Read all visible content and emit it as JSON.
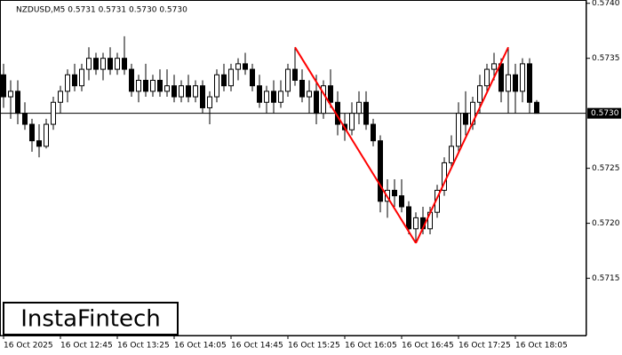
{
  "chart_data": {
    "type": "candlestick",
    "title": "NZDUSD,M5  0.5731 0.5731 0.5730 0.5730",
    "watermark": "InstaFintech",
    "categories": [
      "16 Oct 2025",
      null,
      null,
      null,
      null,
      null,
      null,
      null,
      "16 Oct 12:45",
      null,
      null,
      null,
      null,
      null,
      null,
      null,
      "16 Oct 13:25",
      null,
      null,
      null,
      null,
      null,
      null,
      null,
      "16 Oct 14:05",
      null,
      null,
      null,
      null,
      null,
      null,
      null,
      "16 Oct 14:45",
      null,
      null,
      null,
      null,
      null,
      null,
      null,
      "16 Oct 15:25",
      null,
      null,
      null,
      null,
      null,
      null,
      null,
      "16 Oct 16:05",
      null,
      null,
      null,
      null,
      null,
      null,
      null,
      "16 Oct 16:45",
      null,
      null,
      null,
      null,
      null,
      null,
      null,
      "16 Oct 17:25",
      null,
      null,
      null,
      null,
      null,
      null,
      null,
      "16 Oct 18:05",
      null,
      null,
      null
    ],
    "open": [
      0.57335,
      0.57315,
      0.5732,
      0.573,
      0.5729,
      0.57275,
      0.5727,
      0.5729,
      0.5731,
      0.5732,
      0.57335,
      0.57325,
      0.5734,
      0.5735,
      0.5734,
      0.5735,
      0.5734,
      0.5735,
      0.5734,
      0.5732,
      0.5733,
      0.5732,
      0.5733,
      0.5732,
      0.57325,
      0.57315,
      0.57325,
      0.57315,
      0.57325,
      0.57305,
      0.57315,
      0.57335,
      0.57325,
      0.5734,
      0.57345,
      0.5734,
      0.57325,
      0.5731,
      0.5732,
      0.5731,
      0.5732,
      0.5734,
      0.5733,
      0.57315,
      0.5732,
      0.573,
      0.57325,
      0.5731,
      0.5729,
      0.57285,
      0.573,
      0.5731,
      0.5729,
      0.57275,
      0.5722,
      0.5723,
      0.57225,
      0.57215,
      0.57195,
      0.57205,
      0.57195,
      0.5721,
      0.5723,
      0.57255,
      0.5727,
      0.573,
      0.5729,
      0.5731,
      0.57325,
      0.5734,
      0.57345,
      0.5732,
      0.57335,
      0.5732,
      0.57345,
      0.5731
    ],
    "high": [
      0.57345,
      0.5733,
      0.5733,
      0.5731,
      0.57295,
      0.5729,
      0.57295,
      0.57315,
      0.57325,
      0.5734,
      0.57345,
      0.57345,
      0.5736,
      0.57355,
      0.57355,
      0.5736,
      0.57355,
      0.5737,
      0.57345,
      0.57335,
      0.57345,
      0.57335,
      0.5734,
      0.5734,
      0.57335,
      0.5733,
      0.57335,
      0.5733,
      0.5733,
      0.5732,
      0.5734,
      0.57345,
      0.57345,
      0.5735,
      0.57355,
      0.57345,
      0.57335,
      0.57325,
      0.5733,
      0.5733,
      0.57345,
      0.5736,
      0.5734,
      0.5733,
      0.57335,
      0.5733,
      0.5734,
      0.5732,
      0.573,
      0.5731,
      0.5732,
      0.5732,
      0.57295,
      0.5728,
      0.5724,
      0.5724,
      0.5724,
      0.5722,
      0.5721,
      0.57215,
      0.57215,
      0.57235,
      0.5726,
      0.5728,
      0.5731,
      0.5732,
      0.57315,
      0.57335,
      0.57345,
      0.57355,
      0.5735,
      0.5736,
      0.57345,
      0.5735,
      0.5735,
      0.57312
    ],
    "low": [
      0.57305,
      0.57295,
      0.5729,
      0.57285,
      0.57265,
      0.5726,
      0.57268,
      0.57285,
      0.573,
      0.5731,
      0.5732,
      0.5732,
      0.5733,
      0.57335,
      0.5733,
      0.57335,
      0.57335,
      0.57335,
      0.57315,
      0.5731,
      0.57315,
      0.57315,
      0.57315,
      0.57315,
      0.5731,
      0.5731,
      0.5731,
      0.5731,
      0.573,
      0.5729,
      0.5731,
      0.5732,
      0.5732,
      0.5733,
      0.57335,
      0.5732,
      0.57305,
      0.573,
      0.573,
      0.57305,
      0.57315,
      0.57325,
      0.5731,
      0.573,
      0.5729,
      0.57295,
      0.57305,
      0.5728,
      0.57275,
      0.5728,
      0.5729,
      0.57285,
      0.5727,
      0.5721,
      0.57205,
      0.57215,
      0.5721,
      0.5719,
      0.57182,
      0.5719,
      0.5719,
      0.57205,
      0.57225,
      0.5725,
      0.57265,
      0.5728,
      0.57285,
      0.573,
      0.5732,
      0.5733,
      0.5731,
      0.573,
      0.573,
      0.5731,
      0.573,
      0.573
    ],
    "close": [
      0.57315,
      0.5732,
      0.573,
      0.5729,
      0.57275,
      0.5727,
      0.5729,
      0.5731,
      0.5732,
      0.57335,
      0.57325,
      0.5734,
      0.5735,
      0.5734,
      0.5735,
      0.5734,
      0.5735,
      0.5734,
      0.5732,
      0.5733,
      0.5732,
      0.5733,
      0.5732,
      0.57325,
      0.57315,
      0.57325,
      0.57315,
      0.57325,
      0.57305,
      0.57315,
      0.57335,
      0.57325,
      0.5734,
      0.57345,
      0.5734,
      0.57325,
      0.5731,
      0.5732,
      0.5731,
      0.5732,
      0.5734,
      0.5733,
      0.57315,
      0.5732,
      0.573,
      0.57325,
      0.5731,
      0.5729,
      0.57285,
      0.573,
      0.5731,
      0.5729,
      0.57275,
      0.5722,
      0.5723,
      0.57225,
      0.57215,
      0.57195,
      0.57205,
      0.57195,
      0.5721,
      0.5723,
      0.57255,
      0.5727,
      0.573,
      0.5729,
      0.5731,
      0.57325,
      0.5734,
      0.57345,
      0.5732,
      0.57335,
      0.5732,
      0.57345,
      0.5731,
      0.573
    ],
    "up_color": "#ffffff",
    "down_color": "#000000",
    "current_price": {
      "value": 0.573,
      "label": "0.5730"
    },
    "pattern": {
      "color": "#ff0000",
      "points": [
        [
          41,
          0.5736
        ],
        [
          58,
          0.57182
        ],
        [
          71,
          0.5736
        ]
      ]
    },
    "ylim": [
      0.57098,
      0.57403
    ],
    "yticks": [
      {
        "value": 0.574,
        "label": "0.5740"
      },
      0.5735,
      0.5725,
      {
        "value": 0.572,
        "label": "0.5720"
      },
      0.5715
    ]
  }
}
